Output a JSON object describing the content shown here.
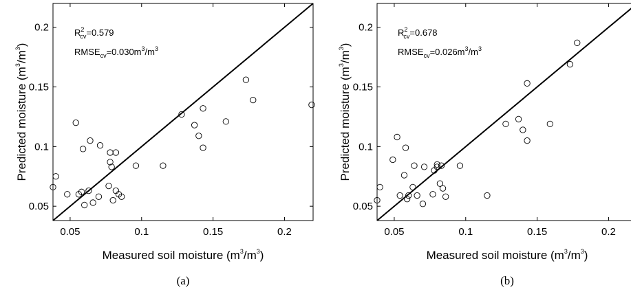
{
  "panels": [
    {
      "label": "(a)",
      "xlabel": "Measured soil moisture (m3/m3)",
      "ylabel": "Predicted moisture (m3/m3)",
      "r2_label": "R2cv=0.579",
      "rmse_label": "RMSEcv=0.030m3/m3"
    },
    {
      "label": "(b)",
      "xlabel": "Measured soil moisture (m3/m3)",
      "ylabel": "Predicted moisture (m3/m3)",
      "r2_label": "R2cv=0.678",
      "rmse_label": "RMSEcv=0.026m3/m3"
    }
  ],
  "chart_data": [
    {
      "type": "scatter",
      "panel_label": "(a)",
      "title": "",
      "xlabel": "Measured soil moisture (m3/m3)",
      "ylabel": "Predicted moisture (m3/m3)",
      "xlim": [
        0.038,
        0.22
      ],
      "ylim": [
        0.038,
        0.22
      ],
      "xticks": [
        0.05,
        0.1,
        0.15,
        0.2
      ],
      "yticks": [
        0.05,
        0.1,
        0.15,
        0.2
      ],
      "xtick_labels": [
        "0.05",
        "0.1",
        "0.15",
        "0.2"
      ],
      "ytick_labels": [
        "0.05",
        "0.1",
        "0.15",
        "0.2"
      ],
      "grid": false,
      "reference_line": "1:1",
      "stats": {
        "R2cv": 0.579,
        "RMSEcv": 0.03,
        "unit": "m3/m3"
      },
      "x": [
        0.038,
        0.04,
        0.048,
        0.054,
        0.056,
        0.058,
        0.059,
        0.06,
        0.063,
        0.064,
        0.066,
        0.07,
        0.071,
        0.077,
        0.078,
        0.078,
        0.079,
        0.08,
        0.082,
        0.082,
        0.084,
        0.086,
        0.096,
        0.115,
        0.128,
        0.137,
        0.14,
        0.143,
        0.143,
        0.159,
        0.173,
        0.178,
        0.219
      ],
      "y": [
        0.066,
        0.075,
        0.06,
        0.12,
        0.06,
        0.062,
        0.098,
        0.051,
        0.063,
        0.105,
        0.053,
        0.058,
        0.101,
        0.067,
        0.087,
        0.095,
        0.083,
        0.055,
        0.063,
        0.095,
        0.06,
        0.058,
        0.084,
        0.084,
        0.127,
        0.118,
        0.109,
        0.099,
        0.132,
        0.121,
        0.156,
        0.139,
        0.135
      ]
    },
    {
      "type": "scatter",
      "panel_label": "(b)",
      "title": "",
      "xlabel": "Measured soil moisture (m3/m3)",
      "ylabel": "Predicted moisture (m3/m3)",
      "xlim": [
        0.038,
        0.22
      ],
      "ylim": [
        0.038,
        0.22
      ],
      "xticks": [
        0.05,
        0.1,
        0.15,
        0.2
      ],
      "yticks": [
        0.05,
        0.1,
        0.15,
        0.2
      ],
      "xtick_labels": [
        "0.05",
        "0.1",
        "0.15",
        "0.2"
      ],
      "ytick_labels": [
        "0.05",
        "0.1",
        "0.15",
        "0.2"
      ],
      "grid": false,
      "reference_line": "1:1",
      "stats": {
        "R2cv": 0.678,
        "RMSEcv": 0.026,
        "unit": "m3/m3"
      },
      "x": [
        0.038,
        0.04,
        0.049,
        0.052,
        0.054,
        0.057,
        0.058,
        0.059,
        0.06,
        0.063,
        0.064,
        0.066,
        0.07,
        0.071,
        0.077,
        0.078,
        0.08,
        0.08,
        0.082,
        0.083,
        0.084,
        0.086,
        0.096,
        0.115,
        0.128,
        0.137,
        0.14,
        0.143,
        0.143,
        0.159,
        0.173,
        0.178
      ],
      "y": [
        0.055,
        0.066,
        0.089,
        0.108,
        0.059,
        0.076,
        0.099,
        0.056,
        0.059,
        0.066,
        0.084,
        0.059,
        0.052,
        0.083,
        0.06,
        0.08,
        0.083,
        0.085,
        0.069,
        0.084,
        0.065,
        0.058,
        0.084,
        0.059,
        0.119,
        0.123,
        0.114,
        0.105,
        0.153,
        0.119,
        0.169,
        0.187
      ]
    }
  ]
}
